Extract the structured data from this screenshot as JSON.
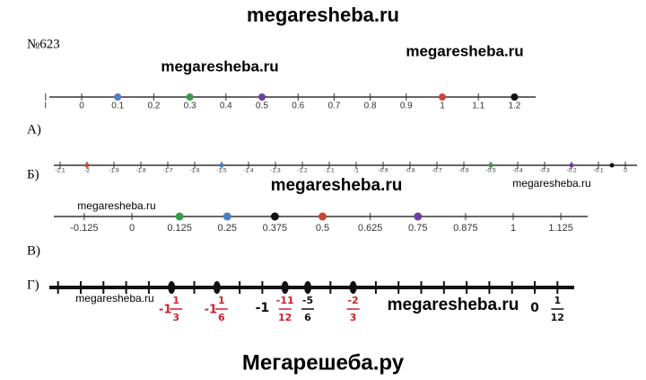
{
  "watermarks": [
    "megaresheba.ru",
    "megaresheba.ru",
    "megaresheba.ru",
    "megaresheba.ru",
    "megaresheba.ru",
    "megaresheba.ru",
    "megaresheba.ru",
    "megaresheba.ru",
    "Мегарешеба.ру"
  ],
  "problem_number": "№623",
  "parts": [
    "А)",
    "Б)",
    "В)",
    "Г)"
  ],
  "line1": {
    "ticks": [
      {
        "value": -0.1,
        "label": "I"
      },
      0,
      0.1,
      0.2,
      0.3,
      0.4,
      0.5,
      0.6,
      0.7,
      0.8,
      0.9,
      1,
      1.1,
      1.2
    ],
    "points": [
      {
        "value": 0.1,
        "color": "#4a7fc1"
      },
      {
        "value": 0.3,
        "color": "#3a9a4a"
      },
      {
        "value": 0.5,
        "color": "#6a3fa0"
      },
      {
        "value": 1,
        "color": "#c9453a"
      },
      {
        "value": 1.2,
        "color": "#111111"
      }
    ]
  },
  "line2": {
    "ticks": [
      -2.1,
      -2,
      -1.9,
      -1.8,
      -1.7,
      -1.6,
      -1.5,
      -1.4,
      -1.3,
      -1.2,
      -1.1,
      -1,
      -0.9,
      -0.8,
      -0.7,
      -0.6,
      -0.5,
      -0.4,
      -0.3,
      -0.2,
      -0.1,
      0
    ],
    "points": [
      {
        "value": -2,
        "color": "#c9453a"
      },
      {
        "value": -1.5,
        "color": "#4a7fc1"
      },
      {
        "value": -0.5,
        "color": "#3a9a4a"
      },
      {
        "value": -0.2,
        "color": "#6a3fa0"
      },
      {
        "value": -0.05,
        "color": "#111111"
      }
    ]
  },
  "line3": {
    "ticks": [
      -0.125,
      0,
      0.125,
      0.25,
      0.375,
      0.5,
      0.625,
      0.75,
      0.875,
      1,
      1.125
    ],
    "points": [
      {
        "value": 0.125,
        "color": "#3a9a4a"
      },
      {
        "value": 0.25,
        "color": "#4a7fc1"
      },
      {
        "value": 0.375,
        "color": "#111111"
      },
      {
        "value": 0.5,
        "color": "#c9453a"
      },
      {
        "value": 0.75,
        "color": "#6a3fa0"
      }
    ]
  },
  "line4": {
    "labels": [
      {
        "whole": "-1",
        "num": "1",
        "den": "3",
        "color": "#d0212b"
      },
      {
        "whole": "-1",
        "num": "1",
        "den": "6",
        "color": "#d0212b"
      },
      {
        "whole": "-1",
        "color": "#111111"
      },
      {
        "num": "-11",
        "den": "12",
        "color": "#d0212b"
      },
      {
        "num": "-5",
        "den": "6",
        "color": "#111111"
      },
      {
        "num": "-2",
        "den": "3",
        "color": "#d0212b"
      },
      {
        "whole": "0",
        "color": "#111111"
      },
      {
        "num": "1",
        "den": "12",
        "color": "#111111"
      }
    ]
  }
}
